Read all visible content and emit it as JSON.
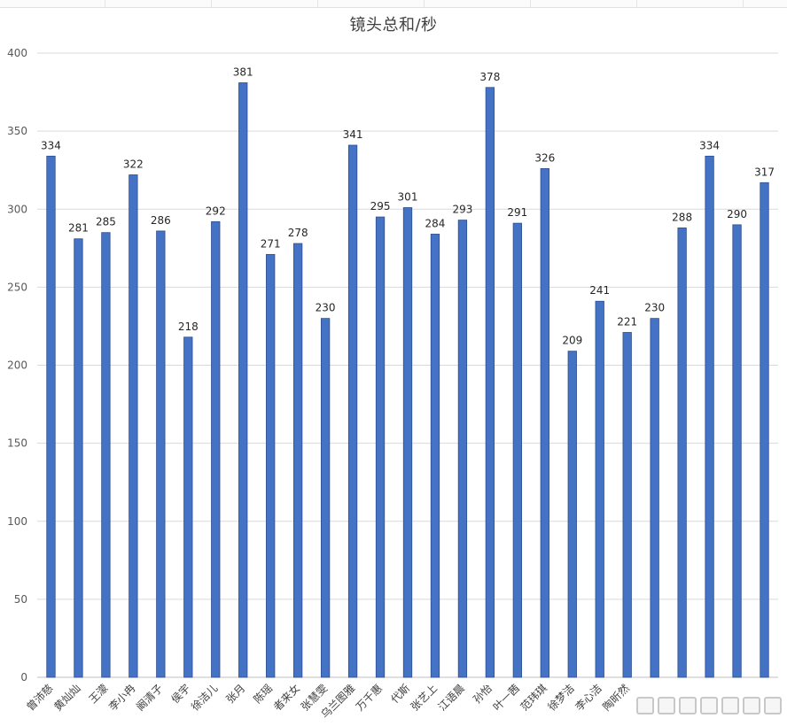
{
  "chart_data": {
    "type": "bar",
    "title": "镜头总和/秒",
    "xlabel": "",
    "ylabel": "",
    "ylim": [
      0,
      400
    ],
    "yticks": [
      0,
      50,
      100,
      150,
      200,
      250,
      300,
      350,
      400
    ],
    "grid": true,
    "legend": "none",
    "bar_color": "#4472c4",
    "categories": [
      "曾沛慈",
      "黄灿灿",
      "王濛",
      "李小冉",
      "阚清子",
      "侯宇",
      "徐洁儿",
      "张月",
      "陈瑶",
      "者来女",
      "张慧雯",
      "乌兰图雅",
      "万千惠",
      "代斯",
      "张艺上",
      "江语晨",
      "孙怡",
      "叶一茜",
      "范玮琪",
      "徐梦洁",
      "李心洁",
      "陶昕然",
      "",
      "",
      "",
      "",
      ""
    ],
    "values": [
      334,
      281,
      285,
      322,
      286,
      218,
      292,
      381,
      271,
      278,
      230,
      341,
      295,
      301,
      284,
      293,
      378,
      291,
      326,
      209,
      241,
      221,
      230,
      288,
      334,
      290,
      317
    ]
  }
}
